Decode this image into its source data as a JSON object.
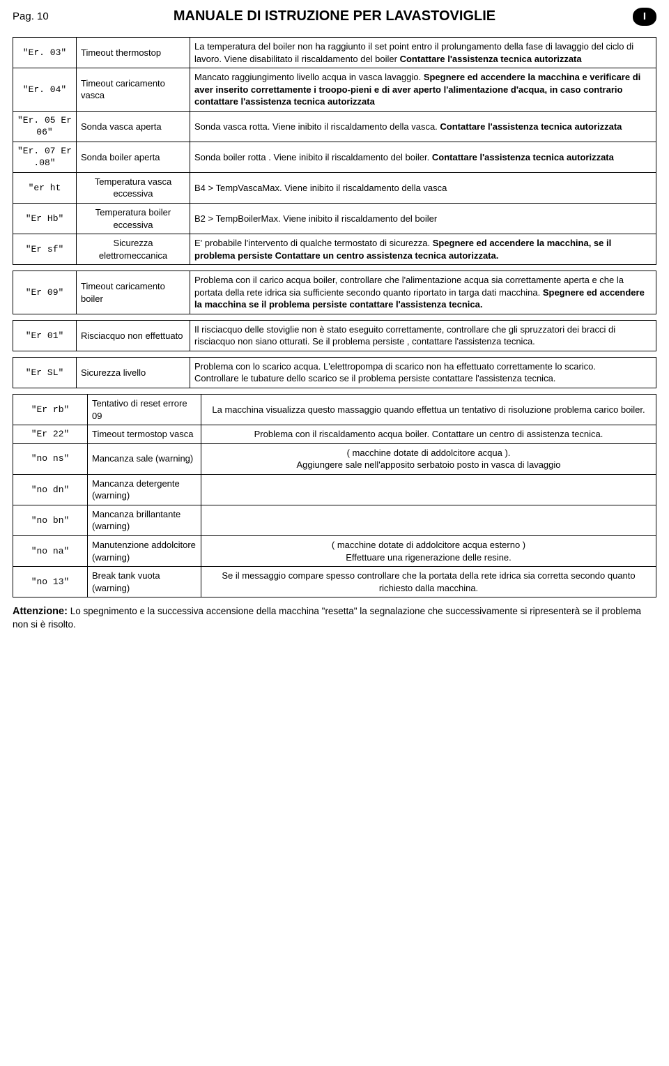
{
  "header": {
    "pag": "Pag. 10",
    "title": "MANUALE DI ISTRUZIONE PER LAVASTOVIGLIE",
    "badge": "I"
  },
  "t1": {
    "rows": [
      {
        "code": "\"Er. 03\"",
        "name": "Timeout thermostop",
        "desc": "La temperatura del boiler non ha raggiunto il set point entro il prolungamento della fase di lavaggio del ciclo di lavoro. Viene disabilitato il riscaldamento del boiler <b>Contattare l'assistenza tecnica autorizzata</b>"
      },
      {
        "code": "\"Er. 04\"",
        "name": "Timeout caricamento vasca",
        "desc": "Mancato raggiungimento livello acqua in vasca lavaggio. <b>Spegnere ed accendere la macchina e verificare di aver inserito correttamente i troopo-pieni e di aver aperto l'alimentazione d'acqua, in caso contrario contattare l'assistenza tecnica autorizzata</b>"
      },
      {
        "code": "\"Er. 05 Er 06\"",
        "name": "Sonda vasca aperta",
        "desc": "Sonda vasca rotta. Viene inibito il riscaldamento della vasca. <b>Contattare l'assistenza tecnica autorizzata</b>"
      },
      {
        "code": "\"Er. 07 Er .08\"",
        "name": "Sonda boiler aperta",
        "desc": "Sonda boiler rotta . Viene inibito il riscaldamento del boiler. <b>Contattare l'assistenza tecnica autorizzata</b>"
      },
      {
        "code": "\"er ht",
        "name": "Temperatura vasca eccessiva",
        "nameAlign": "center",
        "desc": "B4 > TempVascaMax. Viene inibito il riscaldamento della vasca"
      },
      {
        "code": "\"Er Hb\"",
        "name": "Temperatura boiler eccessiva",
        "nameAlign": "center",
        "desc": "B2 > TempBoilerMax. Viene inibito il riscaldamento del boiler"
      },
      {
        "code": "\"Er sf\"",
        "name": "Sicurezza elettromeccanica",
        "nameAlign": "center",
        "desc": "E' probabile l'intervento di qualche termostato di sicurezza. <b>Spegnere ed accendere la macchina, se il problema persiste Contattare un centro   assistenza tecnica autorizzata.</b>"
      }
    ]
  },
  "t2": {
    "rows": [
      {
        "code": "\"Er 09\"",
        "name": "Timeout caricamento boiler",
        "desc": "Problema con il carico acqua boiler, controllare che l'alimentazione acqua sia correttamente aperta e che la portata della rete idrica sia sufficiente secondo quanto riportato in targa dati macchina. <b>Spegnere ed accendere la macchina se il problema persiste contattare l'assistenza tecnica.</b>"
      }
    ]
  },
  "t3": {
    "rows": [
      {
        "code": "\"Er 01\"",
        "name": "Risciacquo non effettuato",
        "desc": "Il risciacquo delle stoviglie non è stato eseguito correttamente, controllare che gli spruzzatori dei bracci di risciacquo non siano otturati. Se il problema persiste , contattare l'assistenza tecnica."
      }
    ]
  },
  "t4": {
    "rows": [
      {
        "code": "\"Er SL\"",
        "name": "Sicurezza livello",
        "desc": "Problema con lo scarico acqua. L'elettropompa di scarico non ha effettuato correttamente lo scarico.<br>Controllare le tubature dello scarico se il problema persiste contattare l'assistenza tecnica."
      }
    ]
  },
  "t5": {
    "rows": [
      {
        "code": "\"Er rb\"",
        "name": "Tentativo di reset errore 09",
        "desc": "La macchina visualizza questo massaggio quando effettua un tentativo di risoluzione problema carico boiler.",
        "descAlign": "center"
      },
      {
        "code": "\"Er 22\"",
        "name": "Timeout termostop vasca",
        "desc": "Problema con il riscaldamento acqua boiler. Contattare un centro di assistenza tecnica.",
        "descAlign": "center"
      },
      {
        "code": "\"no ns\"",
        "name": "Mancanza sale (warning)",
        "desc": "( macchine dotate di addolcitore acqua ).<br>Aggiungere sale nell'apposito serbatoio posto in vasca di lavaggio",
        "descAlign": "center"
      },
      {
        "code": "\"no dn\"",
        "name": "Mancanza detergente (warning)",
        "desc": ""
      },
      {
        "code": "\"no bn\"",
        "name": "Mancanza brillantante (warning)",
        "desc": ""
      },
      {
        "code": "\"no na\"",
        "name": "Manutenzione addolcitore (warning)",
        "desc": "( macchine dotate di addolcitore acqua esterno )<br>Effettuare una rigenerazione delle resine.",
        "descAlign": "center"
      },
      {
        "code": "\"no 13\"",
        "name": "Break tank vuota (warning)",
        "desc": "Se il messaggio compare spesso controllare che la portata della rete idrica sia corretta secondo quanto richiesto dalla macchina.",
        "descAlign": "center"
      }
    ]
  },
  "attention": {
    "label": "Attenzione:",
    "text": " Lo spegnimento e la successiva accensione della macchina \"resetta\" la segnalazione che successivamente si ripresenterà se il problema non si è risolto."
  }
}
